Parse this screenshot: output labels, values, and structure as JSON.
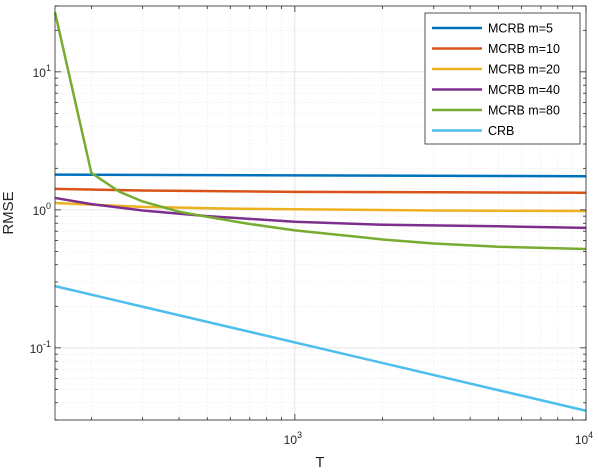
{
  "chart_data": {
    "type": "line",
    "title": "",
    "xlabel": "T",
    "ylabel": "RMSE",
    "xscale": "log",
    "yscale": "log",
    "xlim": [
      150,
      10000
    ],
    "ylim": [
      0.03,
      30
    ],
    "grid": true,
    "legend_position": "top-right",
    "x_ticks": [
      {
        "value": 1000,
        "base": "10",
        "exp": "3"
      },
      {
        "value": 10000,
        "base": "10",
        "exp": "4"
      }
    ],
    "y_ticks": [
      {
        "value": 0.1,
        "base": "10",
        "exp": "-1"
      },
      {
        "value": 1,
        "base": "10",
        "exp": "0"
      },
      {
        "value": 10,
        "base": "10",
        "exp": "1"
      }
    ],
    "series": [
      {
        "name": "MCRB m=5",
        "color": "#0072BD",
        "points": [
          [
            150,
            1.8
          ],
          [
            10000,
            1.75
          ]
        ]
      },
      {
        "name": "MCRB m=10",
        "color": "#D95319",
        "points": [
          [
            150,
            1.42
          ],
          [
            300,
            1.38
          ],
          [
            1000,
            1.35
          ],
          [
            3000,
            1.34
          ],
          [
            10000,
            1.33
          ]
        ]
      },
      {
        "name": "MCRB m=20",
        "color": "#EDB120",
        "points": [
          [
            150,
            1.12
          ],
          [
            300,
            1.05
          ],
          [
            600,
            1.02
          ],
          [
            1000,
            1.01
          ],
          [
            3000,
            0.99
          ],
          [
            10000,
            0.98
          ]
        ]
      },
      {
        "name": "MCRB m=40",
        "color": "#7E2F8E",
        "points": [
          [
            150,
            1.22
          ],
          [
            200,
            1.1
          ],
          [
            300,
            0.99
          ],
          [
            500,
            0.9
          ],
          [
            1000,
            0.82
          ],
          [
            2000,
            0.78
          ],
          [
            5000,
            0.76
          ],
          [
            10000,
            0.74
          ]
        ]
      },
      {
        "name": "MCRB m=80",
        "color": "#77AC30",
        "points": [
          [
            150,
            27
          ],
          [
            200,
            1.85
          ],
          [
            250,
            1.35
          ],
          [
            300,
            1.15
          ],
          [
            400,
            0.97
          ],
          [
            500,
            0.89
          ],
          [
            700,
            0.79
          ],
          [
            1000,
            0.71
          ],
          [
            1500,
            0.65
          ],
          [
            2000,
            0.61
          ],
          [
            3000,
            0.57
          ],
          [
            5000,
            0.54
          ],
          [
            10000,
            0.52
          ]
        ]
      },
      {
        "name": "CRB",
        "color": "#4DBEEE",
        "points": [
          [
            150,
            0.28
          ],
          [
            10000,
            0.035
          ]
        ]
      }
    ]
  }
}
